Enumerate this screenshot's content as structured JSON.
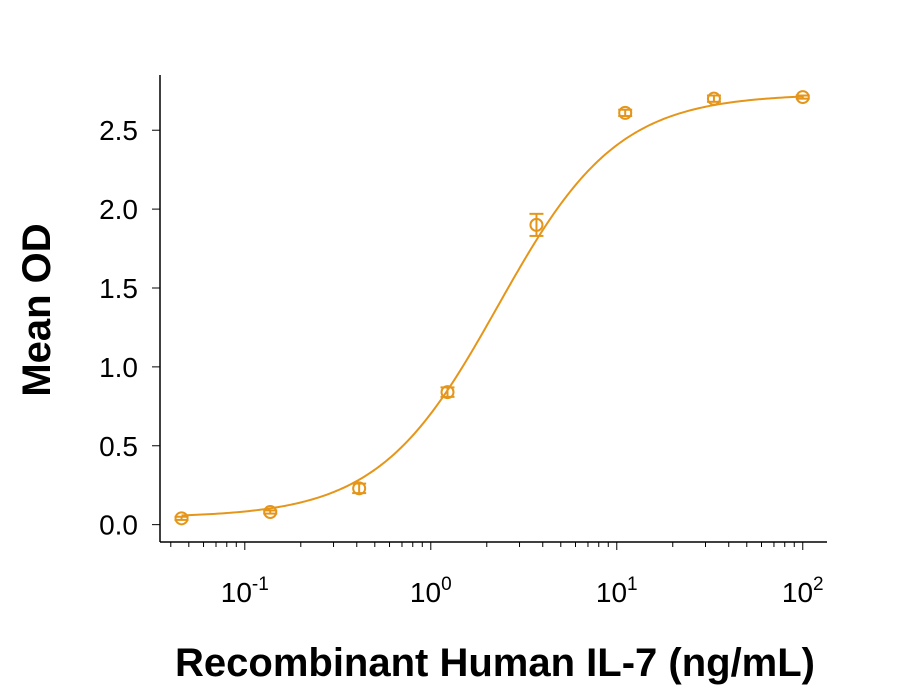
{
  "chart_data": {
    "type": "scatter",
    "title": "",
    "xlabel": "Recombinant Human IL-7 (ng/mL)",
    "ylabel": "Mean OD",
    "x_scale": "log",
    "xlim": [
      0.035,
      135
    ],
    "ylim": [
      -0.11,
      2.85
    ],
    "x_ticks": [
      {
        "value": 0.1,
        "base": "10",
        "exp": "-1"
      },
      {
        "value": 1,
        "base": "10",
        "exp": "0"
      },
      {
        "value": 10,
        "base": "10",
        "exp": "1"
      },
      {
        "value": 100,
        "base": "10",
        "exp": "2"
      }
    ],
    "y_ticks": [
      {
        "value": 0.0,
        "label": "0.0"
      },
      {
        "value": 0.5,
        "label": "0.5"
      },
      {
        "value": 1.0,
        "label": "1.0"
      },
      {
        "value": 1.5,
        "label": "1.5"
      },
      {
        "value": 2.0,
        "label": "2.0"
      },
      {
        "value": 2.5,
        "label": "2.5"
      }
    ],
    "grid": false,
    "legend": "none",
    "color": "#e5961a",
    "series": [
      {
        "x": [
          0.0457,
          0.137,
          0.412,
          1.23,
          3.7,
          11.1,
          33.3,
          100
        ],
        "y": [
          0.04,
          0.08,
          0.23,
          0.84,
          1.9,
          2.61,
          2.7,
          2.71
        ],
        "error": [
          0.01,
          0.01,
          0.03,
          0.03,
          0.07,
          0.02,
          0.02,
          0.01
        ]
      }
    ],
    "fit_curve": true
  }
}
